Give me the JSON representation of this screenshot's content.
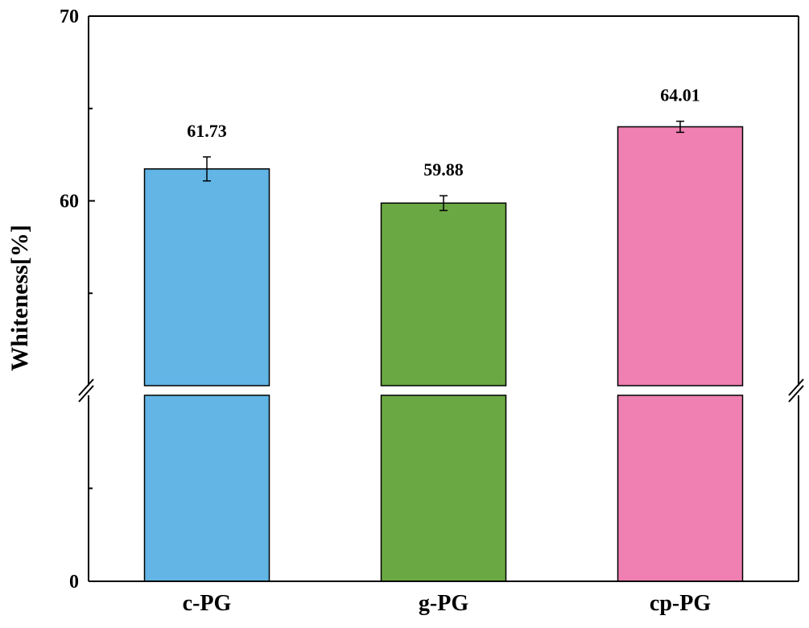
{
  "chart_data": {
    "type": "bar",
    "title": "",
    "xlabel": "",
    "ylabel": "Whiteness[%]",
    "categories": [
      "c-PG",
      "g-PG",
      "cp-PG"
    ],
    "values": [
      61.73,
      59.88,
      64.01
    ],
    "value_labels": [
      "61.73",
      "59.88",
      "64.01"
    ],
    "errors": [
      0.65,
      0.4,
      0.3
    ],
    "colors": [
      "#62b5e5",
      "#6aa843",
      "#ef80b1"
    ],
    "axis_break": true,
    "y_lower_range": [
      0,
      50
    ],
    "y_upper_range": [
      50,
      70
    ],
    "y_tick_labels": [
      "0",
      "60",
      "70"
    ],
    "grid": false,
    "legend": "none"
  }
}
